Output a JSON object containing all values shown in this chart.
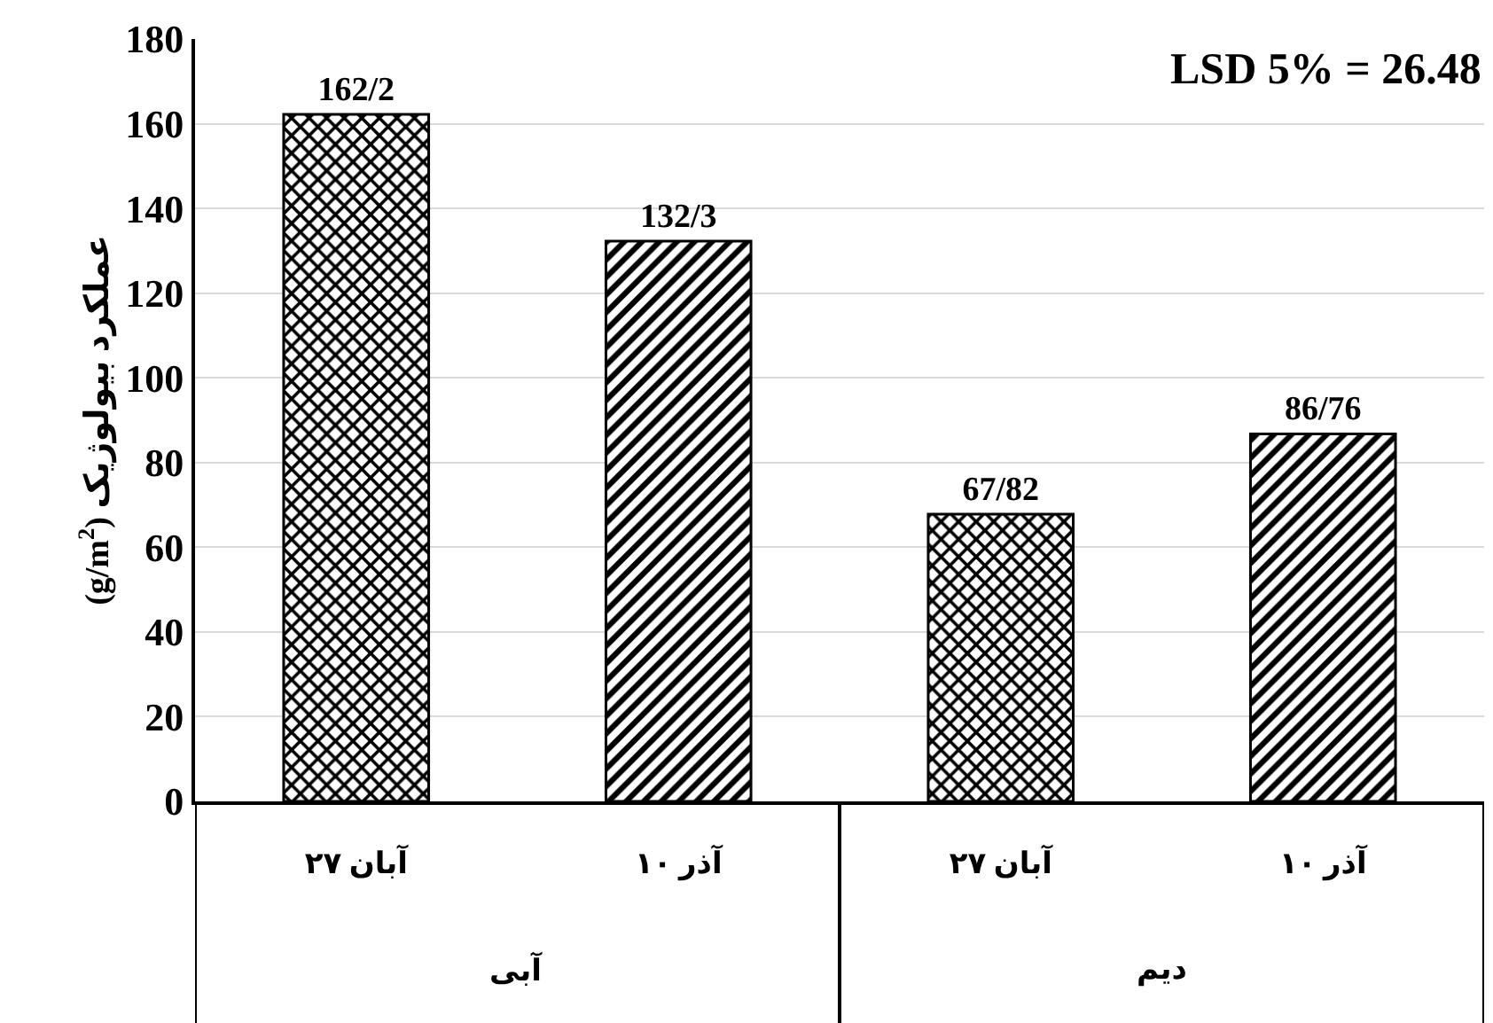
{
  "chart_data": {
    "type": "bar",
    "ylabel": "عملکرد بیولوژیک (g/m$^{2}$)",
    "categories": [
      "آبان ۲۷",
      "آذر ۱۰",
      "آبان ۲۷",
      "آذر ۱۰"
    ],
    "values": [
      162.2,
      132.3,
      67.82,
      86.76
    ],
    "value_labels": [
      "162/2",
      "132/3",
      "67/82",
      "86/76"
    ],
    "colors": [
      "#000000",
      "#000000",
      "#000000",
      "#000000"
    ],
    "annotations": [
      "LSD 5% = 26.48",
      "آبی",
      "دیم"
    ],
    "ylim": [
      0,
      180
    ],
    "yticks": [
      0,
      20,
      40,
      60,
      80,
      100,
      120,
      140,
      160,
      180
    ],
    "grid": "y"
  }
}
